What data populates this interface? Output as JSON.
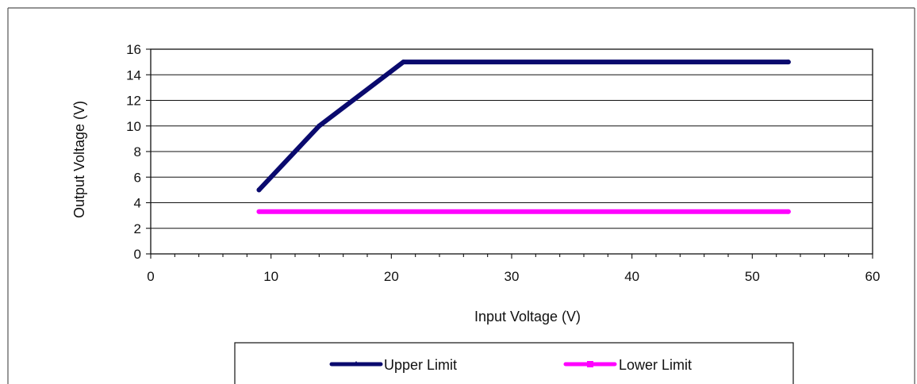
{
  "chart_data": {
    "type": "line",
    "title": "",
    "xlabel": "Input  Voltage  (V)",
    "ylabel": "Output Voltage  (V)",
    "xlim": [
      0,
      60
    ],
    "ylim": [
      0,
      16
    ],
    "xticks": [
      0,
      10,
      20,
      30,
      40,
      50,
      60
    ],
    "yticks": [
      0,
      2,
      4,
      6,
      8,
      10,
      12,
      14,
      16
    ],
    "grid": "horizontal",
    "legend_position": "bottom",
    "series": [
      {
        "name": "Upper Limit",
        "color": "#0a0a6e",
        "marker": "triangle",
        "points": [
          [
            9,
            5
          ],
          [
            14,
            10
          ],
          [
            21,
            15
          ],
          [
            53,
            15
          ]
        ]
      },
      {
        "name": "Lower Limit",
        "color": "#ff00ff",
        "marker": "square",
        "points": [
          [
            9,
            3.3
          ],
          [
            53,
            3.3
          ]
        ]
      }
    ]
  }
}
